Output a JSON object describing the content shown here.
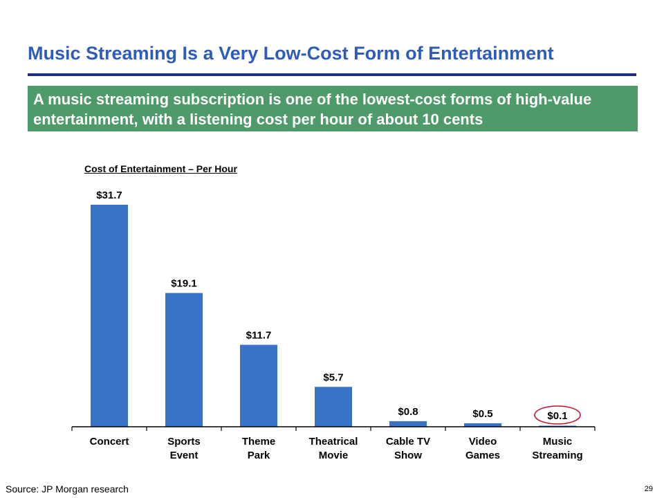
{
  "title": "Music Streaming Is a Very Low-Cost Form of Entertainment",
  "banner": "A music streaming subscription is one of the lowest-cost forms of high-value entertainment, with a listening cost per hour of about 10 cents",
  "source": "Source: JP Morgan research",
  "page_number": "29",
  "colors": {
    "title": "#2E5CB8",
    "rule": "#1F2D7A",
    "banner": "#4E9A6A",
    "bar": "#3A72C6",
    "highlight_circle": "#C8102E"
  },
  "chart_data": {
    "type": "bar",
    "title": "Cost of Entertainment – Per Hour",
    "categories": [
      [
        "Concert"
      ],
      [
        "Sports",
        "Event"
      ],
      [
        "Theme",
        "Park"
      ],
      [
        "Theatrical",
        "Movie"
      ],
      [
        "Cable TV",
        "Show"
      ],
      [
        "Video",
        "Games"
      ],
      [
        "Music",
        "Streaming"
      ]
    ],
    "values": [
      31.7,
      19.1,
      11.7,
      5.7,
      0.8,
      0.5,
      0.1
    ],
    "data_labels": [
      "$31.7",
      "$19.1",
      "$11.7",
      "$5.7",
      "$0.8",
      "$0.5",
      "$0.1"
    ],
    "highlighted_index": 6,
    "ylim": [
      0,
      31.7
    ],
    "xlabel": "",
    "ylabel": "",
    "grid": false
  }
}
